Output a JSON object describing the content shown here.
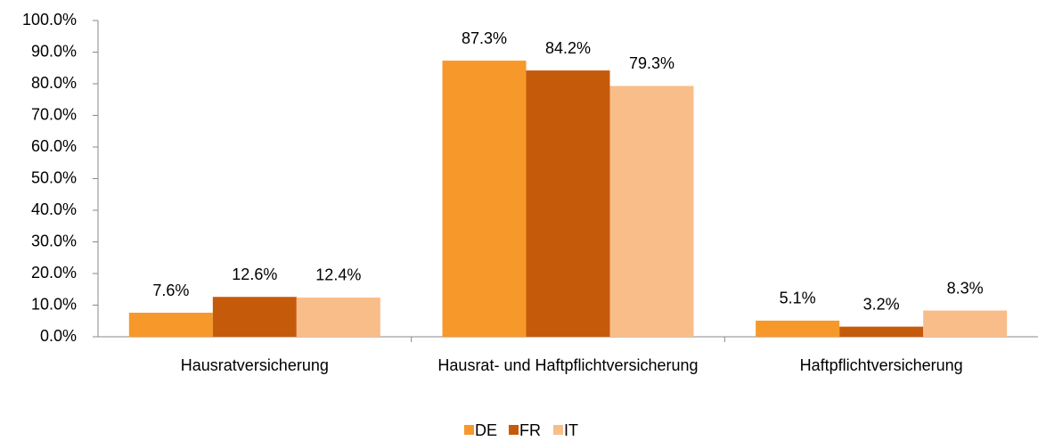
{
  "chart_data": {
    "type": "bar",
    "categories": [
      "Hausratversicherung",
      "Hausrat- und Haftpflichtversicherung",
      "Haftpflichtversicherung"
    ],
    "series": [
      {
        "name": "DE",
        "color": "#f7982a",
        "values": [
          7.6,
          87.3,
          5.1
        ],
        "value_labels": [
          "7.6%",
          "87.3%",
          "5.1%"
        ]
      },
      {
        "name": "FR",
        "color": "#c55a0a",
        "values": [
          12.6,
          84.2,
          3.2
        ],
        "value_labels": [
          "12.6%",
          "84.2%",
          "3.2%"
        ]
      },
      {
        "name": "IT",
        "color": "#f9bd8a",
        "values": [
          12.4,
          79.3,
          8.3
        ],
        "value_labels": [
          "12.4%",
          "79.3%",
          "8.3%"
        ]
      }
    ],
    "ylim": [
      0,
      100
    ],
    "yticks": [
      {
        "value": 0,
        "label": "0.0%"
      },
      {
        "value": 10,
        "label": "10.0%"
      },
      {
        "value": 20,
        "label": "20.0%"
      },
      {
        "value": 30,
        "label": "30.0%"
      },
      {
        "value": 40,
        "label": "40.0%"
      },
      {
        "value": 50,
        "label": "50.0%"
      },
      {
        "value": 60,
        "label": "60.0%"
      },
      {
        "value": 70,
        "label": "70.0%"
      },
      {
        "value": 80,
        "label": "80.0%"
      },
      {
        "value": 90,
        "label": "90.0%"
      },
      {
        "value": 100,
        "label": "100.0%"
      }
    ],
    "grid": false,
    "legend": "bottom"
  }
}
